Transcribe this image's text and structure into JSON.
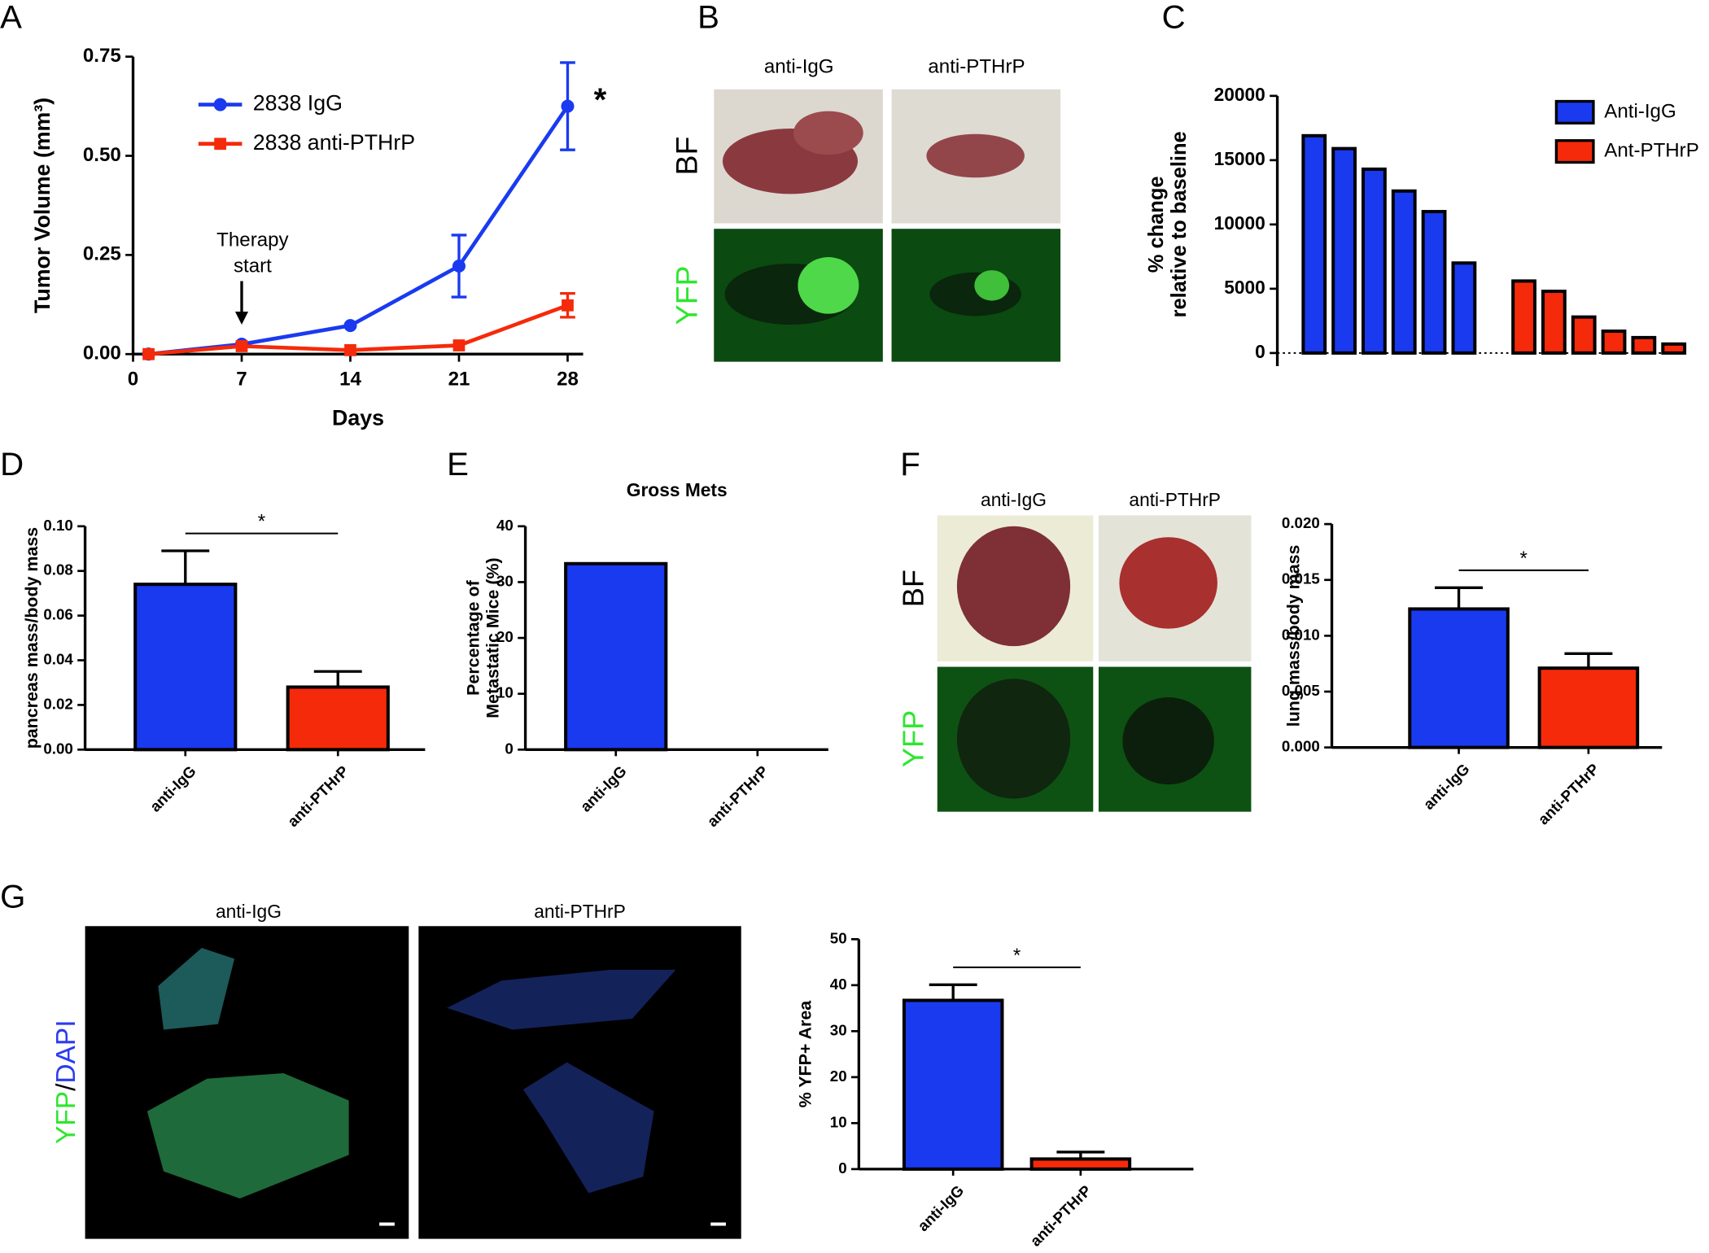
{
  "panel_letters": [
    "A",
    "B",
    "C",
    "D",
    "E",
    "F",
    "G"
  ],
  "images": {
    "B": {
      "columns": [
        "anti-IgG",
        "anti-PTHrP"
      ],
      "rows": [
        "BF",
        "YFP"
      ]
    },
    "F": {
      "columns": [
        "anti-IgG",
        "anti-PTHrP"
      ],
      "rows": [
        "BF",
        "YFP"
      ]
    },
    "G": {
      "columns": [
        "anti-IgG",
        "anti-PTHrP"
      ],
      "row_label_parts": [
        "YFP",
        "/",
        "DAPI"
      ]
    }
  },
  "chart_data": [
    {
      "type": "line",
      "ylabel": "Tumor Volume (mm³)",
      "xlabel": "Days",
      "x": [
        1,
        7,
        14,
        21,
        28
      ],
      "xlim": [
        0,
        29
      ],
      "xticks": [
        0,
        7,
        14,
        21,
        28
      ],
      "ylim": [
        0,
        0.75
      ],
      "yticks": [
        {
          "value": 0,
          "label": "0.00"
        },
        {
          "value": 0.25,
          "label": "0.25"
        },
        {
          "value": 0.5,
          "label": "0.50"
        },
        {
          "value": 0.75,
          "label": "0.75"
        }
      ],
      "series": [
        {
          "name": "2838 IgG",
          "color": "#1a3af0",
          "marker": "circle",
          "values": [
            0,
            0.025,
            0.072,
            0.222,
            0.625
          ],
          "errors": [
            0,
            0,
            0,
            0.078,
            0.11
          ]
        },
        {
          "name": "2838 anti-PTHrP",
          "color": "#f52a0a",
          "marker": "square",
          "values": [
            0,
            0.02,
            0.01,
            0.022,
            0.123
          ],
          "errors": [
            0,
            0,
            0,
            0,
            0.03
          ]
        }
      ],
      "annotation_lines": [
        "Therapy",
        "start"
      ],
      "significance": "*"
    },
    {
      "type": "bar",
      "ylabel": [
        "% change",
        "relative to baseline"
      ],
      "categories": [
        null,
        null,
        null,
        null,
        null,
        null,
        null,
        null,
        null,
        null,
        null,
        null
      ],
      "ylim": [
        0,
        20000
      ],
      "yticks": [
        0,
        5000,
        10000,
        15000,
        20000
      ],
      "series": [
        {
          "name": "Anti-IgG",
          "color": "#1a3af0",
          "values": [
            16900,
            15900,
            14300,
            12600,
            11000,
            7000,
            null,
            null,
            null,
            null,
            null,
            null
          ]
        },
        {
          "name": "Ant-PTHrP",
          "color": "#f52a0a",
          "values": [
            null,
            null,
            null,
            null,
            null,
            null,
            5600,
            4800,
            2800,
            1700,
            1200,
            700
          ]
        }
      ]
    },
    {
      "type": "bar",
      "ylabel": "pancreas mass/body mass",
      "categories": [
        "anti-IgG",
        "anti-PTHrP"
      ],
      "values": [
        0.074,
        0.028
      ],
      "errors": [
        0.015,
        0.007
      ],
      "colors": [
        "#1a3af0",
        "#f52a0a"
      ],
      "ylim": [
        0,
        0.1
      ],
      "yticks": [
        {
          "value": 0,
          "label": "0.00"
        },
        {
          "value": 0.02,
          "label": "0.02"
        },
        {
          "value": 0.04,
          "label": "0.04"
        },
        {
          "value": 0.06,
          "label": "0.06"
        },
        {
          "value": 0.08,
          "label": "0.08"
        },
        {
          "value": 0.1,
          "label": "0.10"
        }
      ],
      "significance": "*"
    },
    {
      "type": "bar",
      "title": "Gross Mets",
      "ylabel": [
        "Percentage of",
        "Metastatic Mice (%)"
      ],
      "categories": [
        "anti-IgG",
        "anti-PTHrP"
      ],
      "values": [
        33.3,
        0
      ],
      "colors": [
        "#1a3af0",
        "#f52a0a"
      ],
      "ylim": [
        0,
        40
      ],
      "yticks": [
        0,
        10,
        20,
        30,
        40
      ]
    },
    {
      "type": "bar",
      "ylabel": "lung mass/body mass",
      "categories": [
        "anti-IgG",
        "anti-PTHrP"
      ],
      "values": [
        0.0124,
        0.0071
      ],
      "errors": [
        0.0019,
        0.0013
      ],
      "colors": [
        "#1a3af0",
        "#f52a0a"
      ],
      "ylim": [
        0,
        0.02
      ],
      "yticks": [
        {
          "value": 0,
          "label": "0.000"
        },
        {
          "value": 0.005,
          "label": "0.005"
        },
        {
          "value": 0.01,
          "label": "0.010"
        },
        {
          "value": 0.015,
          "label": "0.015"
        },
        {
          "value": 0.02,
          "label": "0.020"
        }
      ],
      "significance": "*"
    },
    {
      "type": "bar",
      "ylabel": "% YFP+ Area",
      "categories": [
        "anti-IgG",
        "anti-PTHrP"
      ],
      "values": [
        36.7,
        2.2
      ],
      "errors": [
        3.4,
        1.5
      ],
      "colors": [
        "#1a3af0",
        "#f52a0a"
      ],
      "ylim": [
        0,
        50
      ],
      "yticks": [
        0,
        10,
        20,
        30,
        40,
        50
      ],
      "significance": "*"
    }
  ]
}
